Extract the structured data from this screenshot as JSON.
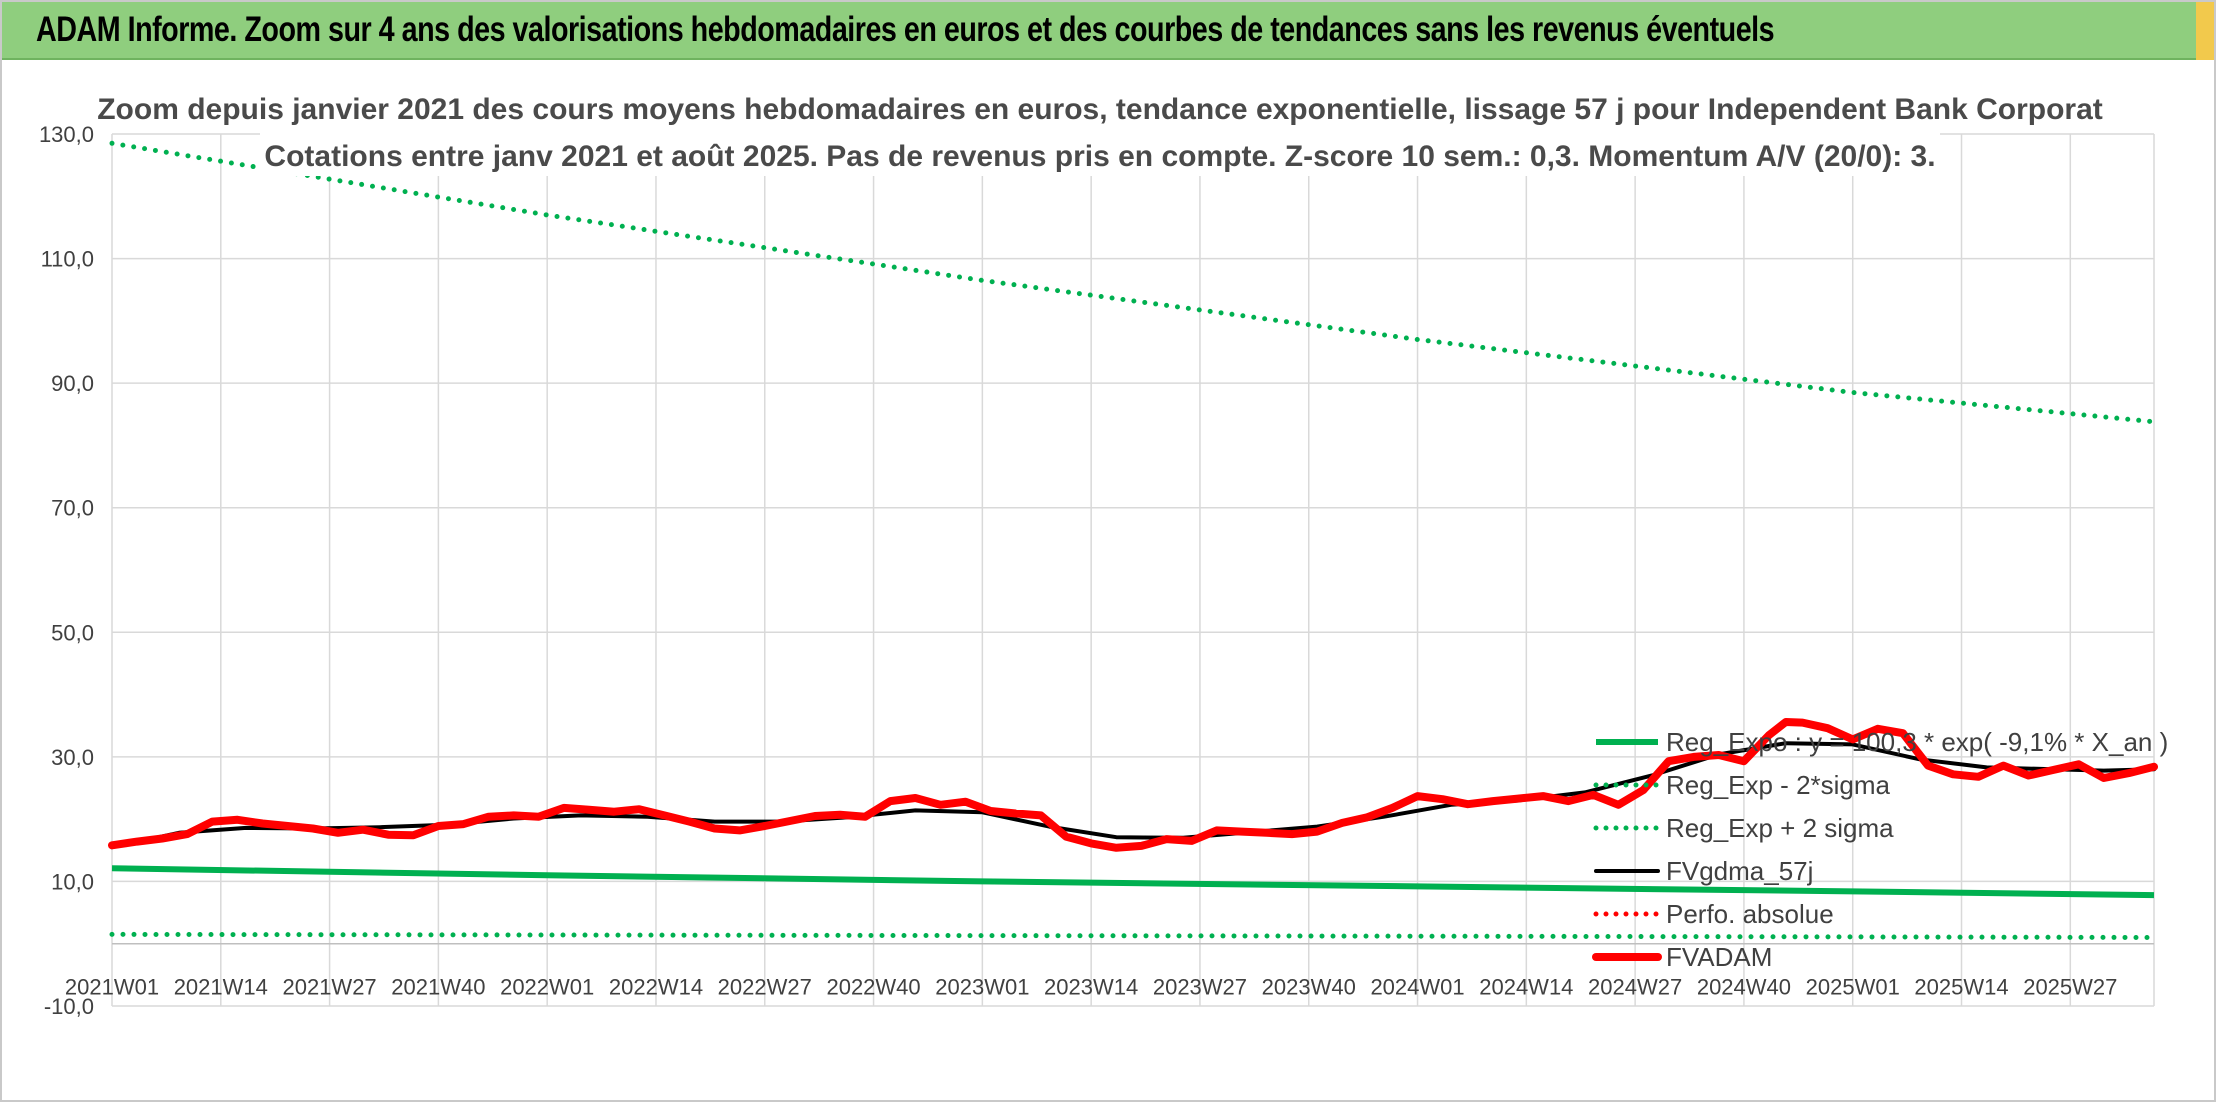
{
  "banner": {
    "title": "ADAM Informe. Zoom sur 4 ans des valorisations hebdomadaires en euros et des courbes de tendances sans les revenus éventuels"
  },
  "colors": {
    "banner_bg": "#8fce7e",
    "green": "#00b050",
    "black": "#000000",
    "red": "#ff0000",
    "gridline": "#d9d9d9"
  },
  "chart_data": {
    "type": "line",
    "title_line1": "Zoom depuis janvier 2021 des cours moyens hebdomadaires en euros, tendance exponentielle, lissage 57 j pour Independent Bank Corporat",
    "title_line2": "Cotations entre janv 2021 et août 2025. Pas de revenus pris en compte. Z-score 10 sem.: 0,3. Momentum A/V (20/0): 3.",
    "ylim": [
      -10,
      130
    ],
    "yticks": [
      -10,
      10,
      30,
      50,
      70,
      90,
      110,
      130
    ],
    "ytick_labels": [
      "-10,0",
      "10,0",
      "30,0",
      "50,0",
      "70,0",
      "90,0",
      "110,0",
      "130,0"
    ],
    "x_range": [
      0,
      244
    ],
    "x_tick_positions": [
      0,
      13,
      26,
      39,
      52,
      65,
      78,
      91,
      104,
      117,
      130,
      143,
      156,
      169,
      182,
      195,
      208,
      221,
      234
    ],
    "x_tick_labels": [
      "2021W01",
      "2021W14",
      "2021W27",
      "2021W40",
      "2022W01",
      "2022W14",
      "2022W27",
      "2022W40",
      "2023W01",
      "2023W14",
      "2023W27",
      "2023W40",
      "2024W01",
      "2024W14",
      "2024W27",
      "2024W40",
      "2025W01",
      "2025W14",
      "2025W27"
    ],
    "grid": true,
    "legend_position": "bottom-right, inside plot",
    "series": [
      {
        "name": "Reg_Expo : y = 100,3 * exp( -9,1% * X_an )",
        "style": "solid-thick",
        "color": "#00b050",
        "x": [
          0,
          52,
          104,
          156,
          208,
          244
        ],
        "y": [
          12.1,
          11.0,
          10.0,
          9.2,
          8.4,
          7.8
        ]
      },
      {
        "name": "Reg_Exp - 2*sigma",
        "style": "dotted",
        "color": "#00b050",
        "x": [
          0,
          52,
          104,
          156,
          208,
          244
        ],
        "y": [
          1.5,
          1.4,
          1.3,
          1.2,
          1.1,
          1.0
        ]
      },
      {
        "name": "Reg_Exp + 2 sigma",
        "style": "dotted",
        "color": "#00b050",
        "x": [
          0,
          52,
          104,
          156,
          208,
          244
        ],
        "y": [
          128.5,
          117.0,
          106.5,
          97.0,
          88.5,
          83.8
        ]
      },
      {
        "name": "FVgdma_57j",
        "style": "solid",
        "color": "#000000",
        "x": [
          0,
          8,
          16,
          24,
          32,
          40,
          48,
          56,
          64,
          72,
          80,
          88,
          96,
          104,
          112,
          120,
          128,
          136,
          144,
          152,
          160,
          168,
          176,
          184,
          192,
          200,
          208,
          216,
          224,
          232,
          238,
          244
        ],
        "y": [
          15.5,
          17.8,
          18.6,
          18.5,
          18.7,
          19.1,
          20.1,
          20.6,
          20.4,
          19.6,
          19.6,
          20.3,
          21.4,
          21.1,
          18.8,
          17.1,
          17.0,
          17.9,
          18.8,
          20.4,
          22.3,
          23.0,
          24.3,
          27.0,
          30.4,
          32.2,
          32.0,
          29.6,
          28.3,
          28.0,
          27.8,
          28.0
        ]
      },
      {
        "name": "Perfo. absolue",
        "style": "dotted",
        "color": "#ff0000",
        "x": [],
        "y": []
      },
      {
        "name": "FVADAM",
        "style": "solid-thick",
        "color": "#ff0000",
        "x": [
          0,
          3,
          6,
          9,
          12,
          15,
          18,
          21,
          24,
          27,
          30,
          33,
          36,
          39,
          42,
          45,
          48,
          51,
          54,
          57,
          60,
          63,
          66,
          69,
          72,
          75,
          78,
          81,
          84,
          87,
          90,
          93,
          96,
          99,
          102,
          105,
          108,
          111,
          114,
          117,
          120,
          123,
          126,
          129,
          132,
          135,
          138,
          141,
          144,
          147,
          150,
          153,
          156,
          159,
          162,
          165,
          168,
          171,
          174,
          177,
          180,
          183,
          186,
          189,
          192,
          195,
          198,
          200,
          202,
          205,
          208,
          211,
          214,
          217,
          220,
          223,
          226,
          229,
          232,
          235,
          238,
          241,
          244
        ],
        "y": [
          15.8,
          16.4,
          16.9,
          17.6,
          19.6,
          19.9,
          19.3,
          18.9,
          18.5,
          17.8,
          18.3,
          17.5,
          17.4,
          18.9,
          19.2,
          20.4,
          20.6,
          20.4,
          21.8,
          21.5,
          21.2,
          21.6,
          20.6,
          19.6,
          18.5,
          18.2,
          18.9,
          19.7,
          20.5,
          20.7,
          20.4,
          22.9,
          23.4,
          22.3,
          22.8,
          21.3,
          20.9,
          20.6,
          17.2,
          16.1,
          15.4,
          15.7,
          16.8,
          16.5,
          18.2,
          18.0,
          17.8,
          17.6,
          18.0,
          19.4,
          20.3,
          21.8,
          23.7,
          23.2,
          22.4,
          22.9,
          23.3,
          23.7,
          22.9,
          23.9,
          22.3,
          24.7,
          29.3,
          30.0,
          30.3,
          29.3,
          33.5,
          35.6,
          35.5,
          34.6,
          32.8,
          34.5,
          33.8,
          28.6,
          27.2,
          26.8,
          28.6,
          27.0,
          27.9,
          28.8,
          26.6,
          27.4,
          28.4
        ]
      }
    ]
  }
}
